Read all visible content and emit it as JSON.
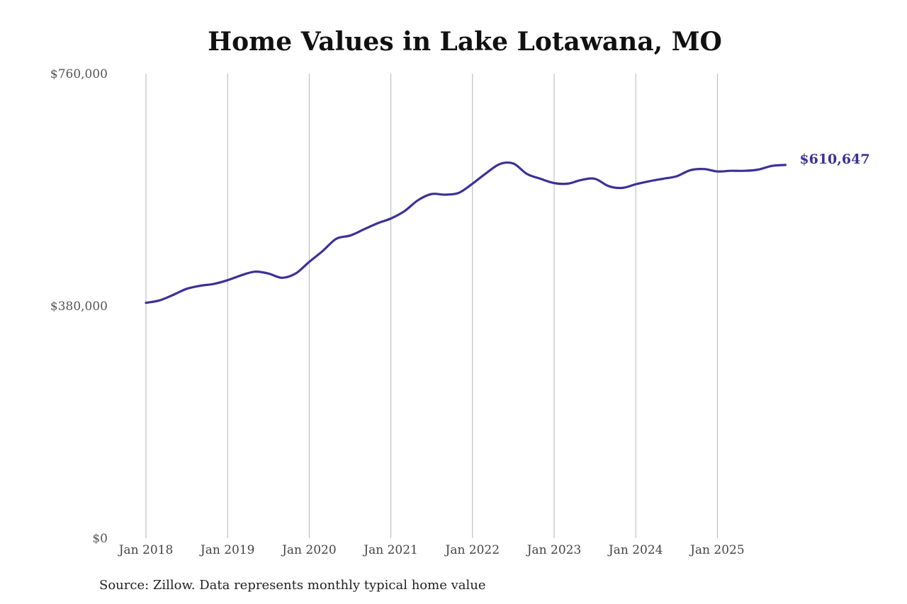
{
  "chart_data": {
    "type": "line",
    "title": "Home Values in Lake Lotawana, MO",
    "source": "Source: Zillow. Data represents monthly typical home value",
    "ylim": [
      0,
      760000
    ],
    "y_ticks": [
      "$0",
      "$380,000",
      "$760,000"
    ],
    "y_tick_values": [
      0,
      380000,
      760000
    ],
    "x_ticks": [
      "Jan 2018",
      "Jan 2019",
      "Jan 2020",
      "Jan 2021",
      "Jan 2022",
      "Jan 2023",
      "Jan 2024",
      "Jan 2025"
    ],
    "x_tick_values": [
      "2018-01",
      "2019-01",
      "2020-01",
      "2021-01",
      "2022-01",
      "2023-01",
      "2024-01",
      "2025-01"
    ],
    "grid": "vertical",
    "line_color": "#3b3196",
    "end_label": "$610,647",
    "series": [
      {
        "x": [
          "2018-01",
          "2018-03",
          "2018-05",
          "2018-07",
          "2018-09",
          "2018-11",
          "2019-01",
          "2019-03",
          "2019-05",
          "2019-07",
          "2019-09",
          "2019-11",
          "2020-01",
          "2020-03",
          "2020-05",
          "2020-07",
          "2020-09",
          "2020-11",
          "2021-01",
          "2021-03",
          "2021-05",
          "2021-07",
          "2021-09",
          "2021-11",
          "2022-01",
          "2022-03",
          "2022-05",
          "2022-07",
          "2022-09",
          "2022-11",
          "2023-01",
          "2023-03",
          "2023-05",
          "2023-07",
          "2023-09",
          "2023-11",
          "2024-01",
          "2024-03",
          "2024-05",
          "2024-07",
          "2024-09",
          "2024-11",
          "2025-01",
          "2025-03",
          "2025-05",
          "2025-07",
          "2025-09",
          "2025-11"
        ],
        "values": [
          385000,
          389000,
          398000,
          408000,
          413000,
          416000,
          422000,
          430000,
          436000,
          433000,
          426000,
          433000,
          452000,
          470000,
          490000,
          495000,
          505000,
          515000,
          523000,
          535000,
          553000,
          563000,
          562000,
          565000,
          580000,
          597000,
          612000,
          613000,
          596000,
          588000,
          581000,
          580000,
          586000,
          588000,
          576000,
          573000,
          579000,
          584000,
          588000,
          592000,
          602000,
          604000,
          600000,
          601000,
          601000,
          603000,
          609000,
          610647
        ]
      }
    ]
  }
}
